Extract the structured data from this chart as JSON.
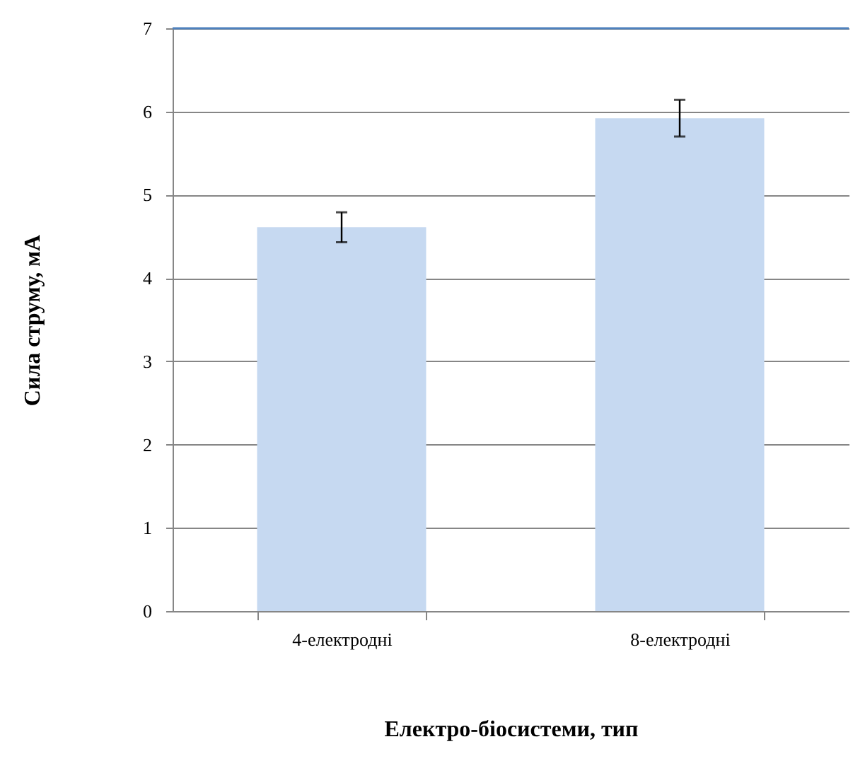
{
  "chart_data": {
    "type": "bar",
    "xlabel": "Електро-біосистеми, тип",
    "ylabel": "Сила струму, мА",
    "categories": [
      "4-електродні",
      "8-електродні"
    ],
    "values": [
      4.61,
      5.92
    ],
    "errors": [
      0.18,
      0.22
    ],
    "color": "#c6d9f1",
    "ylim": [
      0,
      7
    ],
    "yticks": [
      0,
      1,
      2,
      3,
      4,
      5,
      6,
      7
    ],
    "grid": "y"
  }
}
